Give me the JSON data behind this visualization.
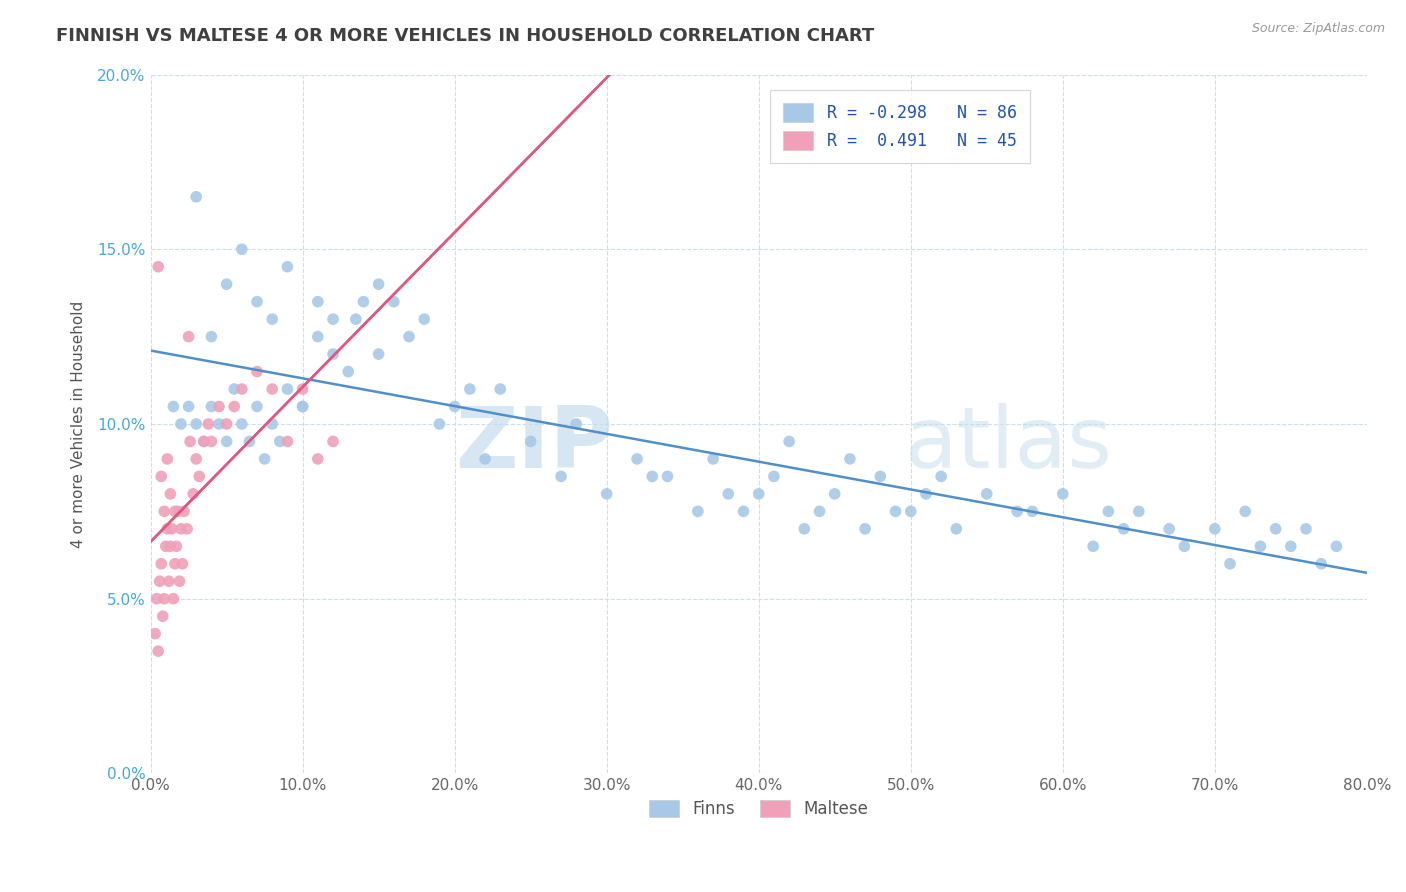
{
  "title": "FINNISH VS MALTESE 4 OR MORE VEHICLES IN HOUSEHOLD CORRELATION CHART",
  "source": "Source: ZipAtlas.com",
  "ylabel": "4 or more Vehicles in Household",
  "finn_R": -0.298,
  "finn_N": 86,
  "malt_R": 0.491,
  "malt_N": 45,
  "finn_color": "#a8c8e8",
  "malt_color": "#f0a0b8",
  "finn_line_color": "#5090c8",
  "malt_line_color": "#e05880",
  "background_color": "#ffffff",
  "grid_color": "#c8dff0",
  "xlim": [
    0.0,
    80.0
  ],
  "ylim": [
    0.0,
    20.0
  ],
  "xticks": [
    0.0,
    10.0,
    20.0,
    30.0,
    40.0,
    50.0,
    60.0,
    70.0,
    80.0
  ],
  "yticks": [
    0.0,
    5.0,
    10.0,
    15.0,
    20.0
  ],
  "watermark_zip": "ZIP",
  "watermark_atlas": "atlas",
  "finn_scatter_x": [
    1.5,
    2.0,
    2.5,
    3.0,
    3.5,
    4.0,
    4.5,
    5.0,
    5.5,
    6.0,
    6.5,
    7.0,
    7.5,
    8.0,
    8.5,
    9.0,
    10.0,
    11.0,
    12.0,
    13.0,
    14.0,
    15.0,
    16.0,
    17.0,
    18.0,
    19.0,
    20.0,
    21.0,
    22.0,
    23.0,
    25.0,
    27.0,
    28.0,
    30.0,
    32.0,
    33.0,
    34.0,
    36.0,
    37.0,
    38.0,
    39.0,
    40.0,
    41.0,
    42.0,
    43.0,
    44.0,
    45.0,
    46.0,
    47.0,
    48.0,
    49.0,
    50.0,
    51.0,
    52.0,
    53.0,
    55.0,
    57.0,
    58.0,
    60.0,
    62.0,
    63.0,
    64.0,
    65.0,
    67.0,
    68.0,
    70.0,
    71.0,
    72.0,
    73.0,
    74.0,
    75.0,
    76.0,
    77.0,
    78.0,
    3.0,
    4.0,
    5.0,
    6.0,
    7.0,
    8.0,
    9.0,
    10.0,
    11.0,
    12.0,
    13.5,
    15.0
  ],
  "finn_scatter_y": [
    10.5,
    10.0,
    10.5,
    10.0,
    9.5,
    10.5,
    10.0,
    9.5,
    11.0,
    10.0,
    9.5,
    10.5,
    9.0,
    10.0,
    9.5,
    11.0,
    10.5,
    12.5,
    13.0,
    11.5,
    13.5,
    14.0,
    13.5,
    12.5,
    13.0,
    10.0,
    10.5,
    11.0,
    9.0,
    11.0,
    9.5,
    8.5,
    10.0,
    8.0,
    9.0,
    8.5,
    8.5,
    7.5,
    9.0,
    8.0,
    7.5,
    8.0,
    8.5,
    9.5,
    7.0,
    7.5,
    8.0,
    9.0,
    7.0,
    8.5,
    7.5,
    7.5,
    8.0,
    8.5,
    7.0,
    8.0,
    7.5,
    7.5,
    8.0,
    6.5,
    7.5,
    7.0,
    7.5,
    7.0,
    6.5,
    7.0,
    6.0,
    7.5,
    6.5,
    7.0,
    6.5,
    7.0,
    6.0,
    6.5,
    16.5,
    12.5,
    14.0,
    15.0,
    13.5,
    13.0,
    14.5,
    10.5,
    13.5,
    12.0,
    13.0,
    12.0
  ],
  "malt_scatter_x": [
    0.3,
    0.4,
    0.5,
    0.6,
    0.7,
    0.8,
    0.9,
    1.0,
    1.1,
    1.2,
    1.3,
    1.4,
    1.5,
    1.6,
    1.7,
    1.8,
    1.9,
    2.0,
    2.1,
    2.2,
    2.4,
    2.6,
    2.8,
    3.0,
    3.2,
    3.5,
    3.8,
    4.0,
    4.5,
    5.0,
    5.5,
    6.0,
    7.0,
    8.0,
    9.0,
    10.0,
    11.0,
    12.0,
    0.5,
    0.7,
    0.9,
    1.1,
    1.3,
    1.6,
    2.5
  ],
  "malt_scatter_y": [
    4.0,
    5.0,
    3.5,
    5.5,
    6.0,
    4.5,
    5.0,
    6.5,
    7.0,
    5.5,
    6.5,
    7.0,
    5.0,
    6.0,
    6.5,
    7.5,
    5.5,
    7.0,
    6.0,
    7.5,
    7.0,
    9.5,
    8.0,
    9.0,
    8.5,
    9.5,
    10.0,
    9.5,
    10.5,
    10.0,
    10.5,
    11.0,
    11.5,
    11.0,
    9.5,
    11.0,
    9.0,
    9.5,
    14.5,
    8.5,
    7.5,
    9.0,
    8.0,
    7.5,
    12.5
  ]
}
